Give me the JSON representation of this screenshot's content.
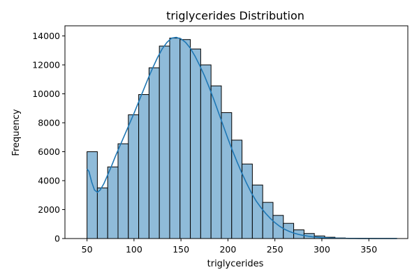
{
  "chart_data": {
    "type": "histogram",
    "title": "triglycerides Distribution",
    "xlabel": "triglycerides",
    "ylabel": "Frequency",
    "xlim": [
      26.5,
      391.5
    ],
    "ylim": [
      0,
      14700
    ],
    "x_ticks": [
      50,
      100,
      150,
      200,
      250,
      300,
      350
    ],
    "y_ticks": [
      0,
      2000,
      4000,
      6000,
      8000,
      10000,
      12000,
      14000
    ],
    "grid": false,
    "legend": "none",
    "bar_color": "#8fbbd9",
    "bar_edge_color": "#000000",
    "kde_color": "#1f77b4",
    "bins": [
      {
        "x0": 50.0,
        "x1": 61.0,
        "count": 6000
      },
      {
        "x0": 61.0,
        "x1": 72.0,
        "count": 3500
      },
      {
        "x0": 72.0,
        "x1": 83.0,
        "count": 4950
      },
      {
        "x0": 83.0,
        "x1": 94.0,
        "count": 6550
      },
      {
        "x0": 94.0,
        "x1": 105.0,
        "count": 8550
      },
      {
        "x0": 105.0,
        "x1": 116.0,
        "count": 9950
      },
      {
        "x0": 116.0,
        "x1": 127.0,
        "count": 11800
      },
      {
        "x0": 127.0,
        "x1": 138.0,
        "count": 13300
      },
      {
        "x0": 138.0,
        "x1": 149.0,
        "count": 13850
      },
      {
        "x0": 149.0,
        "x1": 160.0,
        "count": 13750
      },
      {
        "x0": 160.0,
        "x1": 171.0,
        "count": 13100
      },
      {
        "x0": 171.0,
        "x1": 182.0,
        "count": 12000
      },
      {
        "x0": 182.0,
        "x1": 193.0,
        "count": 10550
      },
      {
        "x0": 193.0,
        "x1": 204.0,
        "count": 8700
      },
      {
        "x0": 204.0,
        "x1": 215.0,
        "count": 6800
      },
      {
        "x0": 215.0,
        "x1": 226.0,
        "count": 5150
      },
      {
        "x0": 226.0,
        "x1": 237.0,
        "count": 3700
      },
      {
        "x0": 237.0,
        "x1": 248.0,
        "count": 2500
      },
      {
        "x0": 248.0,
        "x1": 259.0,
        "count": 1600
      },
      {
        "x0": 259.0,
        "x1": 270.0,
        "count": 1050
      },
      {
        "x0": 270.0,
        "x1": 281.0,
        "count": 600
      },
      {
        "x0": 281.0,
        "x1": 292.0,
        "count": 350
      },
      {
        "x0": 292.0,
        "x1": 303.0,
        "count": 180
      },
      {
        "x0": 303.0,
        "x1": 314.0,
        "count": 90
      },
      {
        "x0": 314.0,
        "x1": 325.0,
        "count": 40
      },
      {
        "x0": 325.0,
        "x1": 336.0,
        "count": 20
      },
      {
        "x0": 336.0,
        "x1": 347.0,
        "count": 10
      },
      {
        "x0": 347.0,
        "x1": 358.0,
        "count": 5
      },
      {
        "x0": 358.0,
        "x1": 369.0,
        "count": 3
      },
      {
        "x0": 369.0,
        "x1": 380.0,
        "count": 2
      }
    ],
    "kde": {
      "x": [
        50,
        52,
        55,
        58,
        61,
        64,
        68,
        72,
        76,
        80,
        85,
        90,
        95,
        100,
        105,
        110,
        115,
        120,
        125,
        130,
        135,
        140,
        145,
        150,
        155,
        160,
        165,
        170,
        175,
        180,
        185,
        190,
        195,
        200,
        205,
        210,
        215,
        220,
        225,
        230,
        235,
        240,
        245,
        250,
        255,
        260,
        265,
        270,
        275,
        280,
        285,
        290,
        295,
        300,
        310,
        320,
        330,
        340,
        350,
        360,
        370,
        380
      ],
      "y": [
        4800,
        4650,
        3900,
        3350,
        3200,
        3350,
        3800,
        4400,
        5000,
        5650,
        6400,
        7150,
        7900,
        8650,
        9450,
        10250,
        11050,
        11800,
        12500,
        13100,
        13550,
        13850,
        13900,
        13800,
        13550,
        13150,
        12600,
        11950,
        11250,
        10450,
        9600,
        8700,
        7800,
        6900,
        6050,
        5250,
        4500,
        3800,
        3150,
        2600,
        2150,
        1750,
        1400,
        1100,
        850,
        650,
        500,
        380,
        290,
        220,
        165,
        120,
        90,
        65,
        35,
        18,
        10,
        5,
        3,
        2,
        1,
        1
      ]
    }
  }
}
